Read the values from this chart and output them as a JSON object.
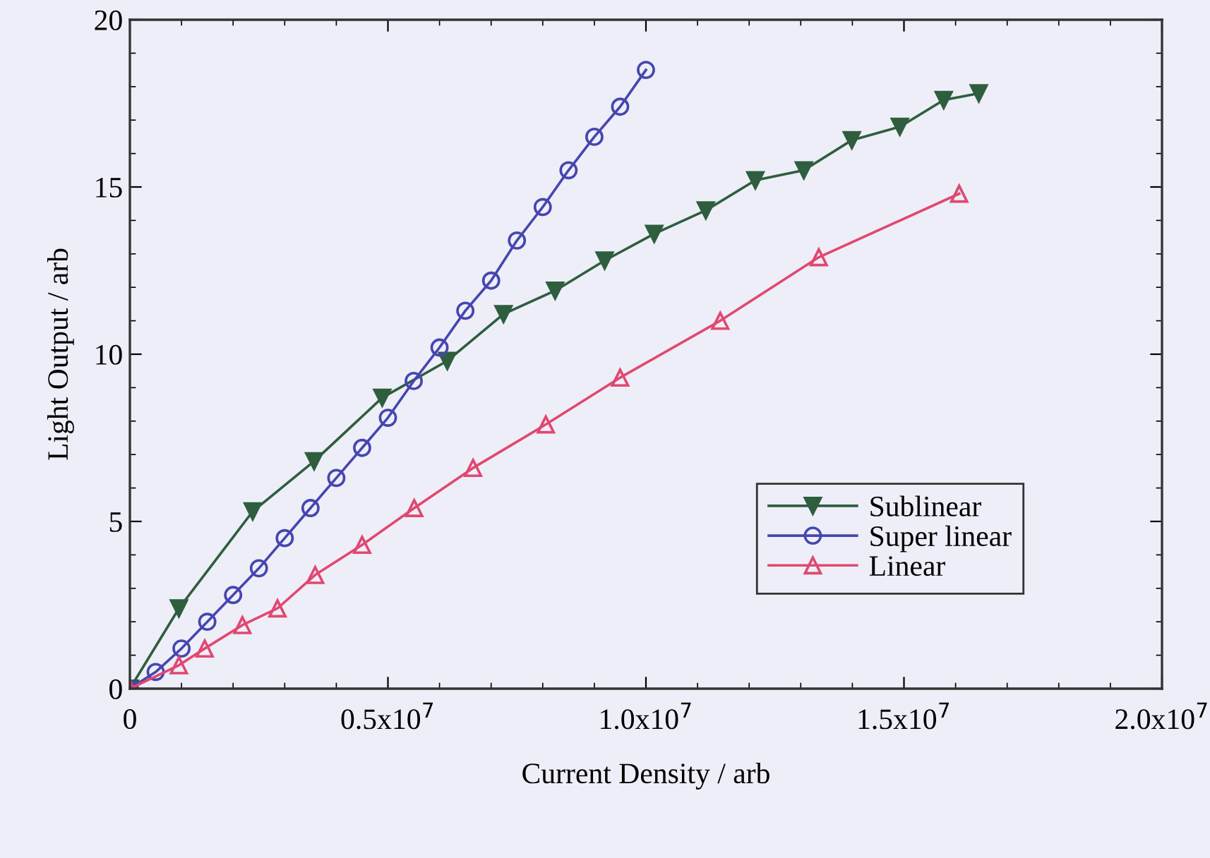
{
  "chart_data": {
    "type": "line",
    "xlabel": "Current Density / arb",
    "ylabel": "Light Output / arb",
    "xlim": [
      0,
      20000000
    ],
    "ylim": [
      0,
      20
    ],
    "xticks": [
      0,
      {
        "value": 5000000,
        "label": "0.5x10$^{7}$"
      },
      {
        "value": 10000000,
        "label": "1.0x10$^{7}$"
      },
      {
        "value": 15000000,
        "label": "1.5x10$^{7}$"
      },
      {
        "value": 20000000,
        "label": "2.0x10$^{7}$"
      }
    ],
    "yticks": [
      0,
      5,
      10,
      15,
      20
    ],
    "grid": false,
    "legend": "lower right",
    "series": [
      {
        "name": "Sublinear",
        "color": "#2e5e3e",
        "marker": "triangle",
        "x": [
          0,
          950000,
          2380000,
          3570000,
          4890000,
          6150000,
          7240000,
          8240000,
          9200000,
          10160000,
          11160000,
          12120000,
          13060000,
          13990000,
          14920000,
          15770000,
          16450000
        ],
        "values": [
          0,
          2.4,
          5.3,
          6.8,
          8.7,
          9.8,
          11.2,
          11.9,
          12.8,
          13.6,
          14.3,
          15.2,
          15.5,
          16.4,
          16.8,
          17.6,
          17.8
        ]
      },
      {
        "name": "Super linear",
        "color": "#4646b0",
        "marker": "circle",
        "x": [
          0,
          500000,
          1000000,
          1500000,
          2000000,
          2500000,
          3000000,
          3500000,
          4000000,
          4500000,
          5000000,
          5500000,
          6000000,
          6500000,
          7000000,
          7500000,
          8000000,
          8500000,
          9000000,
          9500000,
          10000000
        ],
        "values": [
          0,
          0.5,
          1.2,
          2.0,
          2.8,
          3.6,
          4.5,
          5.4,
          6.3,
          7.2,
          8.1,
          9.2,
          10.2,
          11.3,
          12.2,
          13.4,
          14.4,
          15.5,
          16.5,
          17.4,
          18.5
        ]
      },
      {
        "name": "Linear",
        "color": "#e04870",
        "marker": "triangle_up",
        "x": [
          0,
          950000,
          1450000,
          2180000,
          2860000,
          3590000,
          4500000,
          5510000,
          6650000,
          8060000,
          9500000,
          11440000,
          13350000,
          16070000
        ],
        "values": [
          0,
          0.7,
          1.2,
          1.9,
          2.4,
          3.4,
          4.3,
          5.4,
          6.6,
          7.9,
          9.3,
          11.0,
          12.9,
          14.8
        ]
      }
    ]
  }
}
